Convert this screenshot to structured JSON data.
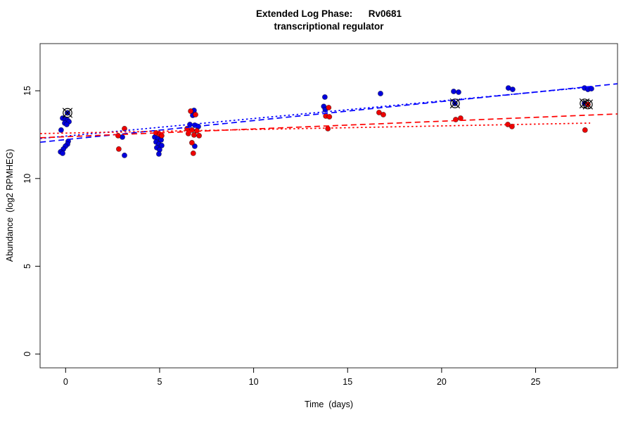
{
  "header": {
    "title_line1": "Extended Log Phase:      Rv0681",
    "title_line2": "transcriptional regulator"
  },
  "chart_data": {
    "type": "scatter",
    "title": "Extended Log Phase: Rv0681 transcriptional regulator",
    "xlabel": "Time  (days)",
    "ylabel": "Abundance  (log2 RPMHEG)",
    "x_ticks": [
      0,
      5,
      10,
      15,
      20,
      25
    ],
    "y_ticks": [
      0,
      5,
      10,
      15
    ],
    "xlim": [
      -1.35,
      29.35
    ],
    "ylim": [
      -0.1,
      17.7
    ],
    "grid": false,
    "legend": "none",
    "colors": {
      "blue": "#0000dd",
      "red": "#ee0000",
      "line_blue": "#0000ff",
      "line_red": "#ff0000",
      "marker_outline": "#000000"
    },
    "series": [
      {
        "name": "blue_points",
        "color": "#0000dd",
        "points": [
          [
            -0.16,
            13.44
          ],
          [
            -0.01,
            13.36
          ],
          [
            0.1,
            13.32
          ],
          [
            0.18,
            13.24
          ],
          [
            -0.05,
            13.16
          ],
          [
            0.06,
            13.08
          ],
          [
            -0.24,
            12.76
          ],
          [
            0.14,
            12.12
          ],
          [
            0.1,
            11.96
          ],
          [
            -0.01,
            11.84
          ],
          [
            -0.12,
            11.68
          ],
          [
            -0.27,
            11.52
          ],
          [
            -0.16,
            11.44
          ],
          [
            3.02,
            12.36
          ],
          [
            3.13,
            11.32
          ],
          [
            4.74,
            12.36
          ],
          [
            4.93,
            12.28
          ],
          [
            5.08,
            12.2
          ],
          [
            4.81,
            12.08
          ],
          [
            4.96,
            11.96
          ],
          [
            5.11,
            11.88
          ],
          [
            4.85,
            11.76
          ],
          [
            5.0,
            11.64
          ],
          [
            4.96,
            11.4
          ],
          [
            6.83,
            13.88
          ],
          [
            6.76,
            13.6
          ],
          [
            6.61,
            13.08
          ],
          [
            6.87,
            13.04
          ],
          [
            7.06,
            12.96
          ],
          [
            6.87,
            11.84
          ],
          [
            13.79,
            14.64
          ],
          [
            13.73,
            14.11
          ],
          [
            13.81,
            13.92
          ],
          [
            16.75,
            14.84
          ],
          [
            20.64,
            14.96
          ],
          [
            20.9,
            14.92
          ],
          [
            23.55,
            15.16
          ],
          [
            23.78,
            15.08
          ],
          [
            27.6,
            15.16
          ],
          [
            27.78,
            15.08
          ],
          [
            27.97,
            15.12
          ]
        ]
      },
      {
        "name": "red_points",
        "color": "#ee0000",
        "points": [
          [
            3.13,
            12.84
          ],
          [
            2.79,
            12.44
          ],
          [
            2.83,
            11.68
          ],
          [
            4.81,
            12.6
          ],
          [
            5.0,
            12.52
          ],
          [
            5.11,
            12.44
          ],
          [
            6.65,
            13.84
          ],
          [
            6.91,
            13.64
          ],
          [
            6.46,
            12.84
          ],
          [
            6.72,
            12.76
          ],
          [
            6.98,
            12.72
          ],
          [
            6.53,
            12.56
          ],
          [
            6.83,
            12.48
          ],
          [
            7.1,
            12.44
          ],
          [
            6.72,
            12.04
          ],
          [
            6.79,
            11.44
          ],
          [
            13.99,
            14.04
          ],
          [
            13.84,
            13.56
          ],
          [
            14.03,
            13.52
          ],
          [
            13.95,
            12.84
          ],
          [
            16.67,
            13.76
          ],
          [
            16.9,
            13.64
          ],
          [
            20.75,
            13.36
          ],
          [
            21.01,
            13.44
          ],
          [
            23.52,
            13.08
          ],
          [
            23.74,
            12.96
          ],
          [
            27.63,
            12.76
          ]
        ]
      }
    ],
    "highlighted_points": [
      {
        "x": 0.1,
        "y": 13.74,
        "color": "#0000dd"
      },
      {
        "x": 20.71,
        "y": 14.28,
        "color": "#0000dd"
      },
      {
        "x": 27.6,
        "y": 14.28,
        "color": "#0000dd"
      },
      {
        "x": 27.78,
        "y": 14.22,
        "color": "#ee0000"
      }
    ],
    "trend_lines": [
      {
        "name": "blue_dashed",
        "color": "#0000ff",
        "style": "dashed",
        "x1": -1.35,
        "y1": 12.07,
        "x2": 29.35,
        "y2": 15.4
      },
      {
        "name": "blue_dotted",
        "color": "#0000ff",
        "style": "dotted",
        "x1": -1.35,
        "y1": 12.28,
        "x2": 28.15,
        "y2": 15.24
      },
      {
        "name": "red_dashed",
        "color": "#ff0000",
        "style": "dashed",
        "x1": -1.35,
        "y1": 12.32,
        "x2": 29.35,
        "y2": 13.68
      },
      {
        "name": "red_dotted",
        "color": "#ff0000",
        "style": "dotted",
        "x1": -1.35,
        "y1": 12.56,
        "x2": 27.9,
        "y2": 13.16
      }
    ]
  }
}
